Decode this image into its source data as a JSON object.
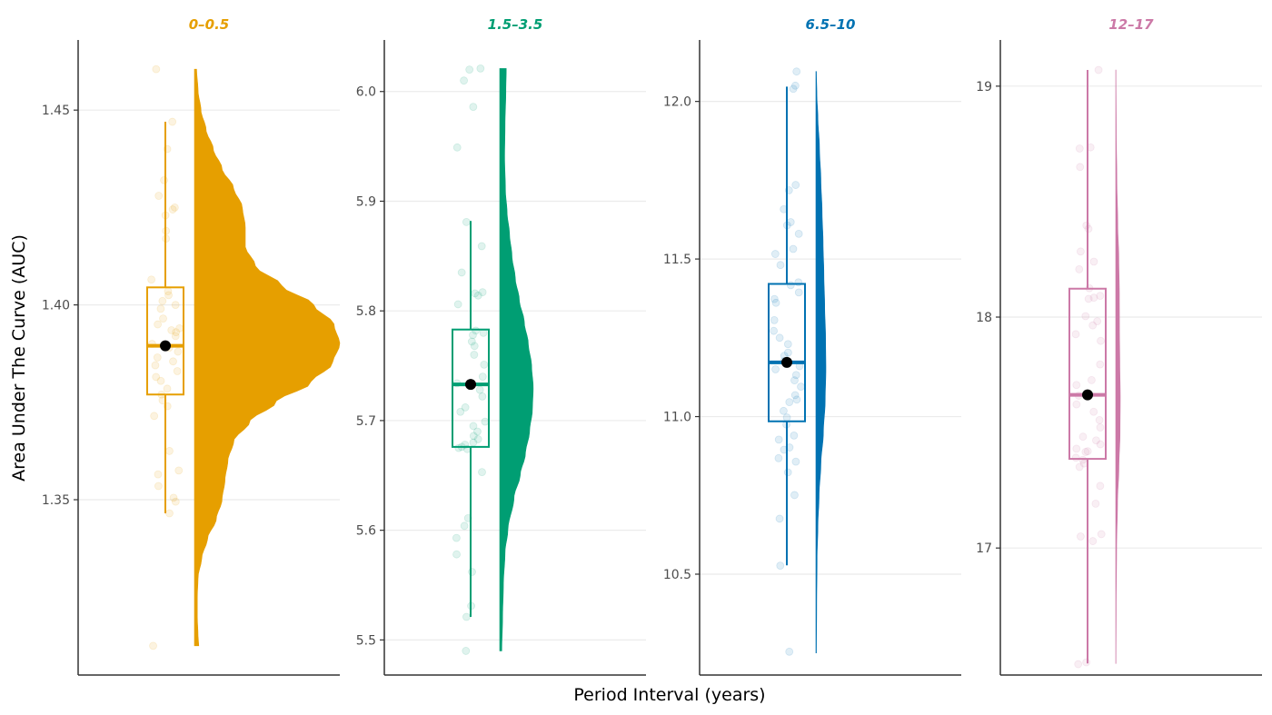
{
  "chart_data": {
    "type": "raincloud",
    "xlabel": "Period Interval (years)",
    "ylabel": "Area Under The Curve (AUC)",
    "grid": "horizontal-major",
    "panels": [
      {
        "title": "0–0.5",
        "color": "#E69F00",
        "ylim": [
          1.305,
          1.468
        ],
        "yticks": [
          1.35,
          1.4,
          1.45
        ],
        "ytick_labels": [
          "1.35",
          "1.40",
          "1.45"
        ],
        "box": {
          "q1": 1.377,
          "median": 1.3895,
          "q3": 1.4045,
          "whisker_low": 1.3465,
          "whisker_high": 1.447
        },
        "mean": 1.3895,
        "density_range": [
          1.3125,
          1.4605
        ],
        "density": [
          [
            1.3125,
            0.03
          ],
          [
            1.315,
            0.025
          ],
          [
            1.32,
            0.02
          ],
          [
            1.325,
            0.02
          ],
          [
            1.33,
            0.025
          ],
          [
            1.335,
            0.05
          ],
          [
            1.34,
            0.09
          ],
          [
            1.345,
            0.15
          ],
          [
            1.35,
            0.19
          ],
          [
            1.355,
            0.21
          ],
          [
            1.36,
            0.23
          ],
          [
            1.365,
            0.27
          ],
          [
            1.37,
            0.38
          ],
          [
            1.375,
            0.56
          ],
          [
            1.38,
            0.8
          ],
          [
            1.385,
            0.95
          ],
          [
            1.39,
            1.0
          ],
          [
            1.395,
            0.96
          ],
          [
            1.4,
            0.82
          ],
          [
            1.405,
            0.6
          ],
          [
            1.41,
            0.42
          ],
          [
            1.415,
            0.35
          ],
          [
            1.42,
            0.35
          ],
          [
            1.425,
            0.33
          ],
          [
            1.43,
            0.27
          ],
          [
            1.435,
            0.19
          ],
          [
            1.44,
            0.13
          ],
          [
            1.445,
            0.08
          ],
          [
            1.45,
            0.045
          ],
          [
            1.455,
            0.025
          ],
          [
            1.4605,
            0.015
          ]
        ],
        "points": [
          1.4605,
          1.447,
          1.44,
          1.432,
          1.428,
          1.425,
          1.4245,
          1.423,
          1.419,
          1.417,
          1.4065,
          1.4035,
          1.4025,
          1.401,
          1.4,
          1.399,
          1.3965,
          1.395,
          1.394,
          1.3935,
          1.393,
          1.392,
          1.39,
          1.389,
          1.388,
          1.3865,
          1.3855,
          1.3845,
          1.383,
          1.3815,
          1.3805,
          1.3785,
          1.377,
          1.3755,
          1.374,
          1.3715,
          1.3625,
          1.3575,
          1.3565,
          1.3535,
          1.3505,
          1.3495,
          1.3465,
          1.3125
        ]
      },
      {
        "title": "1.5–3.5",
        "color": "#009E73",
        "ylim": [
          5.468,
          6.047
        ],
        "yticks": [
          5.5,
          5.6,
          5.7,
          5.8,
          5.9,
          6.0
        ],
        "ytick_labels": [
          "5.5",
          "5.6",
          "5.7",
          "5.8",
          "5.9",
          "6.0"
        ],
        "box": {
          "q1": 5.676,
          "median": 5.733,
          "q3": 5.783,
          "whisker_low": 5.521,
          "whisker_high": 5.882
        },
        "mean": 5.733,
        "density_range": [
          5.49,
          6.021
        ],
        "density": [
          [
            5.49,
            0.05
          ],
          [
            5.52,
            0.07
          ],
          [
            5.55,
            0.09
          ],
          [
            5.58,
            0.13
          ],
          [
            5.6,
            0.2
          ],
          [
            5.63,
            0.35
          ],
          [
            5.65,
            0.5
          ],
          [
            5.67,
            0.63
          ],
          [
            5.69,
            0.73
          ],
          [
            5.71,
            0.8
          ],
          [
            5.73,
            0.82
          ],
          [
            5.75,
            0.78
          ],
          [
            5.77,
            0.7
          ],
          [
            5.79,
            0.6
          ],
          [
            5.81,
            0.48
          ],
          [
            5.83,
            0.38
          ],
          [
            5.85,
            0.3
          ],
          [
            5.87,
            0.24
          ],
          [
            5.89,
            0.18
          ],
          [
            5.91,
            0.14
          ],
          [
            5.94,
            0.12
          ],
          [
            5.97,
            0.13
          ],
          [
            6.0,
            0.15
          ],
          [
            6.021,
            0.16
          ]
        ],
        "points": [
          6.021,
          6.02,
          6.01,
          5.986,
          5.949,
          5.881,
          5.859,
          5.835,
          5.817,
          5.816,
          5.814,
          5.806,
          5.782,
          5.78,
          5.778,
          5.772,
          5.768,
          5.76,
          5.751,
          5.74,
          5.734,
          5.728,
          5.722,
          5.712,
          5.708,
          5.699,
          5.695,
          5.69,
          5.686,
          5.683,
          5.68,
          5.678,
          5.676,
          5.675,
          5.674,
          5.653,
          5.611,
          5.604,
          5.593,
          5.578,
          5.562,
          5.531,
          5.521,
          5.49
        ]
      },
      {
        "title": "6.5–10",
        "color": "#0072B2",
        "ylim": [
          10.18,
          12.195
        ],
        "yticks": [
          10.5,
          11.0,
          11.5,
          12.0
        ],
        "ytick_labels": [
          "10.5",
          "11.0",
          "11.5",
          "12.0"
        ],
        "box": {
          "q1": 10.985,
          "median": 11.172,
          "q3": 11.421,
          "whisker_low": 10.528,
          "whisker_high": 12.047
        },
        "mean": 11.172,
        "density_range": [
          10.25,
          12.095
        ],
        "density": [
          [
            10.25,
            0.05
          ],
          [
            10.4,
            0.08
          ],
          [
            10.55,
            0.12
          ],
          [
            10.65,
            0.2
          ],
          [
            10.75,
            0.32
          ],
          [
            10.85,
            0.5
          ],
          [
            10.95,
            0.75
          ],
          [
            11.05,
            0.93
          ],
          [
            11.15,
            1.0
          ],
          [
            11.25,
            0.97
          ],
          [
            11.35,
            0.88
          ],
          [
            11.45,
            0.8
          ],
          [
            11.55,
            0.72
          ],
          [
            11.65,
            0.62
          ],
          [
            11.75,
            0.5
          ],
          [
            11.85,
            0.36
          ],
          [
            11.95,
            0.2
          ],
          [
            12.02,
            0.1
          ],
          [
            12.095,
            0.05
          ]
        ],
        "points": [
          12.095,
          12.05,
          12.04,
          11.735,
          11.718,
          11.658,
          11.617,
          11.607,
          11.58,
          11.532,
          11.516,
          11.481,
          11.426,
          11.417,
          11.394,
          11.373,
          11.361,
          11.306,
          11.272,
          11.25,
          11.23,
          11.203,
          11.193,
          11.176,
          11.16,
          11.15,
          11.132,
          11.115,
          11.095,
          11.068,
          11.054,
          11.046,
          11.018,
          10.997,
          10.975,
          10.94,
          10.927,
          10.902,
          10.895,
          10.868,
          10.857,
          10.823,
          10.751,
          10.676,
          10.527,
          10.254
        ]
      },
      {
        "title": "12–17",
        "color": "#CC79A7",
        "ylim": [
          16.45,
          19.2
        ],
        "yticks": [
          17,
          18,
          19
        ],
        "ytick_labels": [
          "17",
          "18",
          "19"
        ],
        "box": {
          "q1": 17.386,
          "median": 17.663,
          "q3": 18.123,
          "whisker_low": 16.5,
          "whisker_high": 19.07
        },
        "mean": 17.663,
        "density_range": [
          16.5,
          19.07
        ],
        "density": [
          [
            16.5,
            0.05
          ],
          [
            16.75,
            0.1
          ],
          [
            17.0,
            0.2
          ],
          [
            17.2,
            0.4
          ],
          [
            17.35,
            0.7
          ],
          [
            17.5,
            0.95
          ],
          [
            17.65,
            1.0
          ],
          [
            17.8,
            0.9
          ],
          [
            17.95,
            0.82
          ],
          [
            18.1,
            0.8
          ],
          [
            18.25,
            0.68
          ],
          [
            18.4,
            0.45
          ],
          [
            18.6,
            0.25
          ],
          [
            18.8,
            0.12
          ],
          [
            19.07,
            0.05
          ]
        ],
        "points": [
          19.07,
          18.735,
          18.73,
          18.65,
          18.397,
          18.382,
          18.284,
          18.24,
          18.207,
          18.125,
          18.092,
          18.084,
          18.079,
          18.004,
          17.982,
          17.964,
          17.926,
          17.897,
          17.795,
          17.727,
          17.706,
          17.66,
          17.622,
          17.59,
          17.554,
          17.522,
          17.482,
          17.466,
          17.449,
          17.43,
          17.419,
          17.416,
          17.391,
          17.382,
          17.366,
          17.351,
          17.269,
          17.192,
          17.06,
          17.05,
          17.03,
          16.505,
          16.497
        ]
      }
    ]
  }
}
